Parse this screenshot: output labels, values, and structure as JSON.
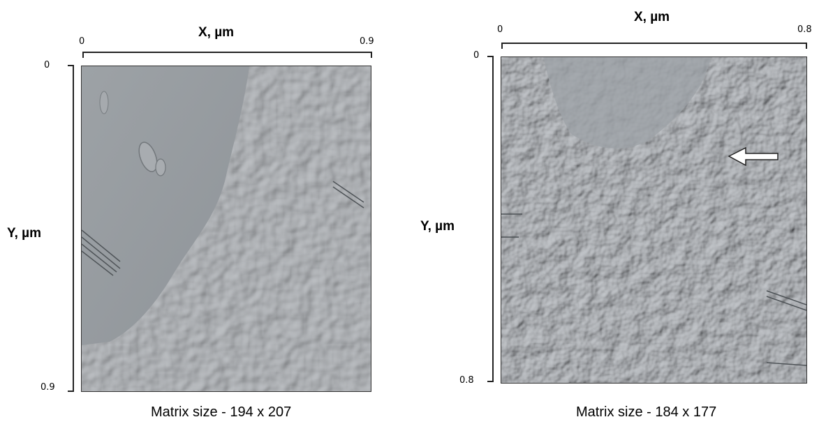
{
  "panels": [
    {
      "x_axis_label": "X, µm",
      "y_axis_label": "Y, µm",
      "x_tick_start": "0",
      "x_tick_end": "0.9",
      "y_tick_start": "0",
      "y_tick_end": "0.9",
      "caption": "Matrix size - 194 x 207",
      "image_subject": "grayscale AFM surface scan with granular grain texture",
      "image_palette": [
        "#8e9398",
        "#b9bdc1",
        "#5f6468"
      ]
    },
    {
      "x_axis_label": "X, µm",
      "y_axis_label": "Y, µm",
      "x_tick_start": "0",
      "x_tick_end": "0.8",
      "y_tick_start": "0",
      "y_tick_end": "0.8",
      "caption": "Matrix size - 184 x 177",
      "image_subject": "grayscale AFM surface scan with granular grain texture and white arrow marker",
      "image_palette": [
        "#8b9095",
        "#c2c6ca",
        "#595e62"
      ],
      "marker": "white-arrow-left"
    }
  ]
}
